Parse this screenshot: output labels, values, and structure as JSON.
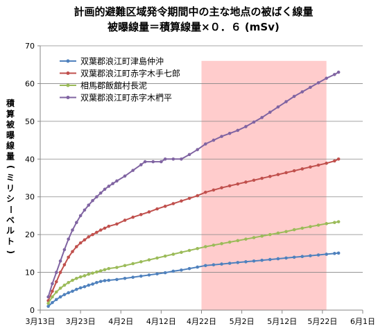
{
  "chart_data": {
    "type": "line",
    "title": "計画的避難区域発令期間中の主な地点の被ばく線量",
    "subtitle": "被曝線量＝積算線量×０．６ (mSv)",
    "ylabel": "積算被曝線量(ミリシーベルト)",
    "xlabel": "",
    "xlim": [
      "2011-03-13",
      "2011-06-01"
    ],
    "ylim": [
      0,
      70
    ],
    "yticks": [
      0,
      10,
      20,
      30,
      40,
      50,
      60,
      70
    ],
    "xticks": [
      {
        "date": "2011-03-13",
        "label": "3月13日"
      },
      {
        "date": "2011-03-23",
        "label": "3月23日"
      },
      {
        "date": "2011-04-02",
        "label": "4月2日"
      },
      {
        "date": "2011-04-12",
        "label": "4月12日"
      },
      {
        "date": "2011-04-22",
        "label": "4月22日"
      },
      {
        "date": "2011-05-02",
        "label": "5月2日"
      },
      {
        "date": "2011-05-12",
        "label": "5月12日"
      },
      {
        "date": "2011-05-22",
        "label": "5月22日"
      },
      {
        "date": "2011-06-01",
        "label": "6月1日"
      }
    ],
    "grid": "horizontal",
    "legend_position": "top-left",
    "highlight_region": {
      "start": "2011-04-22",
      "end": "2011-05-23",
      "color": "#ffcccc"
    },
    "series": [
      {
        "name": "双葉郡浪江町津島仲沖",
        "color": "#4f81bd",
        "points": [
          [
            "2011-03-15",
            1.0
          ],
          [
            "2011-03-16",
            2.0
          ],
          [
            "2011-03-17",
            2.8
          ],
          [
            "2011-03-18",
            3.5
          ],
          [
            "2011-03-19",
            4.1
          ],
          [
            "2011-03-20",
            4.6
          ],
          [
            "2011-03-21",
            5.0
          ],
          [
            "2011-03-22",
            5.5
          ],
          [
            "2011-03-23",
            5.9
          ],
          [
            "2011-03-24",
            6.2
          ],
          [
            "2011-03-25",
            6.6
          ],
          [
            "2011-03-26",
            6.9
          ],
          [
            "2011-03-27",
            7.3
          ],
          [
            "2011-03-28",
            7.6
          ],
          [
            "2011-03-29",
            7.8
          ],
          [
            "2011-03-30",
            7.9
          ],
          [
            "2011-04-01",
            8.1
          ],
          [
            "2011-04-03",
            8.4
          ],
          [
            "2011-04-05",
            8.7
          ],
          [
            "2011-04-07",
            9.0
          ],
          [
            "2011-04-09",
            9.3
          ],
          [
            "2011-04-11",
            9.6
          ],
          [
            "2011-04-13",
            9.9
          ],
          [
            "2011-04-15",
            10.3
          ],
          [
            "2011-04-17",
            10.6
          ],
          [
            "2011-04-19",
            11.0
          ],
          [
            "2011-04-21",
            11.4
          ],
          [
            "2011-04-23",
            11.8
          ],
          [
            "2011-04-25",
            12.0
          ],
          [
            "2011-04-27",
            12.2
          ],
          [
            "2011-04-29",
            12.4
          ],
          [
            "2011-05-01",
            12.6
          ],
          [
            "2011-05-03",
            12.8
          ],
          [
            "2011-05-05",
            13.0
          ],
          [
            "2011-05-07",
            13.2
          ],
          [
            "2011-05-09",
            13.4
          ],
          [
            "2011-05-11",
            13.6
          ],
          [
            "2011-05-13",
            13.8
          ],
          [
            "2011-05-15",
            14.0
          ],
          [
            "2011-05-17",
            14.2
          ],
          [
            "2011-05-19",
            14.4
          ],
          [
            "2011-05-21",
            14.6
          ],
          [
            "2011-05-23",
            14.8
          ],
          [
            "2011-05-25",
            15.0
          ],
          [
            "2011-05-26",
            15.1
          ]
        ]
      },
      {
        "name": "双葉郡浪江町赤字木手七郎",
        "color": "#c0504d",
        "points": [
          [
            "2011-03-15",
            2.5
          ],
          [
            "2011-03-16",
            5.0
          ],
          [
            "2011-03-17",
            7.5
          ],
          [
            "2011-03-18",
            10.0
          ],
          [
            "2011-03-19",
            12.0
          ],
          [
            "2011-03-20",
            14.0
          ],
          [
            "2011-03-21",
            15.5
          ],
          [
            "2011-03-22",
            16.8
          ],
          [
            "2011-03-23",
            17.8
          ],
          [
            "2011-03-24",
            18.6
          ],
          [
            "2011-03-25",
            19.4
          ],
          [
            "2011-03-26",
            20.0
          ],
          [
            "2011-03-27",
            20.6
          ],
          [
            "2011-03-28",
            21.2
          ],
          [
            "2011-03-29",
            21.7
          ],
          [
            "2011-03-30",
            22.2
          ],
          [
            "2011-04-01",
            22.8
          ],
          [
            "2011-04-03",
            23.8
          ],
          [
            "2011-04-05",
            24.6
          ],
          [
            "2011-04-07",
            25.3
          ],
          [
            "2011-04-09",
            26.0
          ],
          [
            "2011-04-11",
            26.8
          ],
          [
            "2011-04-13",
            27.5
          ],
          [
            "2011-04-15",
            28.2
          ],
          [
            "2011-04-17",
            28.9
          ],
          [
            "2011-04-19",
            29.6
          ],
          [
            "2011-04-21",
            30.3
          ],
          [
            "2011-04-23",
            31.2
          ],
          [
            "2011-04-25",
            31.8
          ],
          [
            "2011-04-27",
            32.4
          ],
          [
            "2011-04-29",
            32.9
          ],
          [
            "2011-05-01",
            33.4
          ],
          [
            "2011-05-03",
            33.9
          ],
          [
            "2011-05-05",
            34.4
          ],
          [
            "2011-05-07",
            34.9
          ],
          [
            "2011-05-09",
            35.4
          ],
          [
            "2011-05-11",
            35.9
          ],
          [
            "2011-05-13",
            36.4
          ],
          [
            "2011-05-15",
            36.9
          ],
          [
            "2011-05-17",
            37.4
          ],
          [
            "2011-05-19",
            37.9
          ],
          [
            "2011-05-21",
            38.4
          ],
          [
            "2011-05-23",
            38.9
          ],
          [
            "2011-05-25",
            39.5
          ],
          [
            "2011-05-26",
            40.0
          ]
        ]
      },
      {
        "name": "相馬郡飯舘村長泥",
        "color": "#9bbb59",
        "points": [
          [
            "2011-03-15",
            1.8
          ],
          [
            "2011-03-16",
            3.5
          ],
          [
            "2011-03-17",
            4.8
          ],
          [
            "2011-03-18",
            5.8
          ],
          [
            "2011-03-19",
            6.6
          ],
          [
            "2011-03-20",
            7.3
          ],
          [
            "2011-03-21",
            7.9
          ],
          [
            "2011-03-22",
            8.4
          ],
          [
            "2011-03-23",
            8.8
          ],
          [
            "2011-03-24",
            9.1
          ],
          [
            "2011-03-25",
            9.5
          ],
          [
            "2011-03-26",
            9.8
          ],
          [
            "2011-03-27",
            10.1
          ],
          [
            "2011-03-28",
            10.4
          ],
          [
            "2011-03-29",
            10.7
          ],
          [
            "2011-03-30",
            11.0
          ],
          [
            "2011-04-01",
            11.3
          ],
          [
            "2011-04-03",
            11.8
          ],
          [
            "2011-04-05",
            12.3
          ],
          [
            "2011-04-07",
            12.8
          ],
          [
            "2011-04-09",
            13.3
          ],
          [
            "2011-04-11",
            13.8
          ],
          [
            "2011-04-13",
            14.3
          ],
          [
            "2011-04-15",
            14.8
          ],
          [
            "2011-04-17",
            15.3
          ],
          [
            "2011-04-19",
            15.8
          ],
          [
            "2011-04-21",
            16.3
          ],
          [
            "2011-04-23",
            16.8
          ],
          [
            "2011-04-25",
            17.2
          ],
          [
            "2011-04-27",
            17.6
          ],
          [
            "2011-04-29",
            18.0
          ],
          [
            "2011-05-01",
            18.4
          ],
          [
            "2011-05-03",
            18.8
          ],
          [
            "2011-05-05",
            19.2
          ],
          [
            "2011-05-07",
            19.6
          ],
          [
            "2011-05-09",
            20.0
          ],
          [
            "2011-05-11",
            20.4
          ],
          [
            "2011-05-13",
            20.8
          ],
          [
            "2011-05-15",
            21.3
          ],
          [
            "2011-05-17",
            21.7
          ],
          [
            "2011-05-19",
            22.1
          ],
          [
            "2011-05-21",
            22.5
          ],
          [
            "2011-05-23",
            22.9
          ],
          [
            "2011-05-25",
            23.2
          ],
          [
            "2011-05-26",
            23.4
          ]
        ]
      },
      {
        "name": "双葉郡浪江町赤字木椚平",
        "color": "#8064a2",
        "points": [
          [
            "2011-03-15",
            3.5
          ],
          [
            "2011-03-16",
            7.0
          ],
          [
            "2011-03-17",
            10.0
          ],
          [
            "2011-03-18",
            13.0
          ],
          [
            "2011-03-19",
            16.0
          ],
          [
            "2011-03-20",
            18.8
          ],
          [
            "2011-03-21",
            21.2
          ],
          [
            "2011-03-22",
            23.2
          ],
          [
            "2011-03-23",
            25.0
          ],
          [
            "2011-03-24",
            26.5
          ],
          [
            "2011-03-25",
            27.8
          ],
          [
            "2011-03-26",
            29.0
          ],
          [
            "2011-03-27",
            30.0
          ],
          [
            "2011-03-28",
            31.0
          ],
          [
            "2011-03-29",
            32.0
          ],
          [
            "2011-03-30",
            32.8
          ],
          [
            "2011-03-31",
            33.5
          ],
          [
            "2011-04-01",
            34.2
          ],
          [
            "2011-04-03",
            35.5
          ],
          [
            "2011-04-05",
            37.0
          ],
          [
            "2011-04-07",
            38.5
          ],
          [
            "2011-04-08",
            39.3
          ],
          [
            "2011-04-10",
            39.3
          ],
          [
            "2011-04-12",
            39.3
          ],
          [
            "2011-04-13",
            40.0
          ],
          [
            "2011-04-15",
            40.0
          ],
          [
            "2011-04-17",
            40.0
          ],
          [
            "2011-04-19",
            41.2
          ],
          [
            "2011-04-21",
            42.5
          ],
          [
            "2011-04-23",
            44.0
          ],
          [
            "2011-04-25",
            45.0
          ],
          [
            "2011-04-27",
            46.0
          ],
          [
            "2011-04-29",
            46.8
          ],
          [
            "2011-05-01",
            47.6
          ],
          [
            "2011-05-03",
            48.6
          ],
          [
            "2011-05-05",
            49.8
          ],
          [
            "2011-05-07",
            51.0
          ],
          [
            "2011-05-09",
            52.4
          ],
          [
            "2011-05-11",
            53.8
          ],
          [
            "2011-05-13",
            55.2
          ],
          [
            "2011-05-15",
            56.6
          ],
          [
            "2011-05-17",
            57.8
          ],
          [
            "2011-05-19",
            59.0
          ],
          [
            "2011-05-21",
            60.2
          ],
          [
            "2011-05-23",
            61.4
          ],
          [
            "2011-05-25",
            62.4
          ],
          [
            "2011-05-26",
            63.0
          ]
        ]
      }
    ]
  }
}
